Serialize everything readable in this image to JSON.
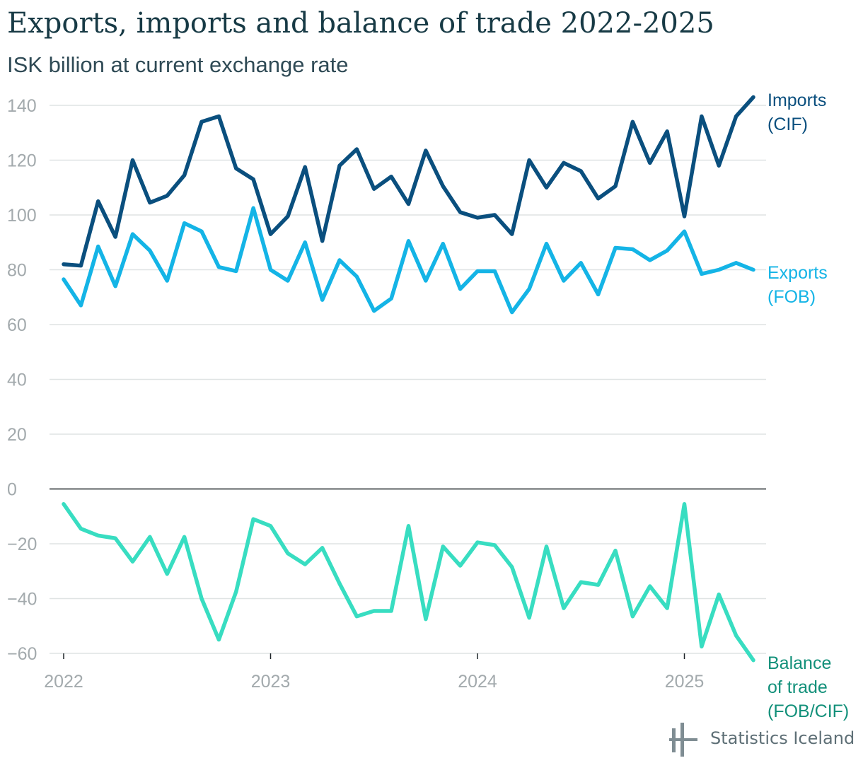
{
  "title": "Exports, imports and balance of trade 2022-2025",
  "subtitle": "ISK billion at current exchange rate",
  "logo_text": "Statistics Iceland",
  "colors": {
    "imports": "#0a4f7e",
    "exports": "#14b4e6",
    "balance": "#38ddc1",
    "balance_label": "#12907a"
  },
  "chart_data": {
    "type": "line",
    "x": [
      "2022-01",
      "2022-02",
      "2022-03",
      "2022-04",
      "2022-05",
      "2022-06",
      "2022-07",
      "2022-08",
      "2022-09",
      "2022-10",
      "2022-11",
      "2022-12",
      "2023-01",
      "2023-02",
      "2023-03",
      "2023-04",
      "2023-05",
      "2023-06",
      "2023-07",
      "2023-08",
      "2023-09",
      "2023-10",
      "2023-11",
      "2023-12",
      "2024-01",
      "2024-02",
      "2024-03",
      "2024-04",
      "2024-05",
      "2024-06",
      "2024-07",
      "2024-08",
      "2024-09",
      "2024-10",
      "2024-11",
      "2024-12",
      "2025-01",
      "2025-02",
      "2025-03",
      "2025-04",
      "2025-05"
    ],
    "xticks": [
      "2022",
      "2023",
      "2024",
      "2025"
    ],
    "ylim": [
      -60,
      140
    ],
    "yticks": [
      140,
      120,
      100,
      80,
      60,
      40,
      20,
      0,
      -20,
      -40,
      -60
    ],
    "ytick_labels": [
      "140",
      "120",
      "100",
      "80",
      "60",
      "40",
      "20",
      "0",
      "−20",
      "−40",
      "−60"
    ],
    "grid": true,
    "series": [
      {
        "name": "Imports (CIF)",
        "label_lines": [
          "Imports",
          "(CIF)"
        ],
        "values": [
          82,
          81.5,
          105,
          92,
          120,
          104.5,
          107,
          114.5,
          134,
          136,
          117,
          113,
          93,
          99.5,
          117.5,
          90.5,
          118,
          124,
          109.5,
          114,
          104,
          123.5,
          110.5,
          101,
          99,
          100,
          93,
          120,
          110,
          119,
          116,
          106,
          110.5,
          134,
          119,
          130.5,
          99.5,
          136,
          118,
          136,
          143
        ]
      },
      {
        "name": "Exports (FOB)",
        "label_lines": [
          "Exports",
          "(FOB)"
        ],
        "values": [
          76.5,
          67,
          88.5,
          74,
          93,
          87,
          76,
          97,
          94,
          81,
          79.5,
          102.5,
          80,
          76,
          90,
          69,
          83.5,
          77.5,
          65,
          69.5,
          90.5,
          76,
          89.5,
          73,
          79.5,
          79.5,
          64.5,
          73,
          89.5,
          76,
          82.5,
          71,
          88,
          87.5,
          83.5,
          87,
          94,
          78.5,
          80,
          82.5,
          80
        ]
      },
      {
        "name": "Balance of trade (FOB/CIF)",
        "label_lines": [
          "Balance",
          "of trade",
          "(FOB/CIF)"
        ],
        "values": [
          -5.5,
          -14.5,
          -17,
          -18,
          -26.5,
          -17.5,
          -31,
          -17.5,
          -40,
          -55,
          -37.5,
          -11,
          -13.5,
          -23.5,
          -27.5,
          -21.5,
          -34.5,
          -46.5,
          -44.5,
          -44.5,
          -13.5,
          -47.5,
          -21,
          -28,
          -19.5,
          -20.5,
          -28.5,
          -47,
          -21,
          -43.5,
          -34,
          -35,
          -22.5,
          -46.5,
          -35.5,
          -43.5,
          -5.5,
          -57.5,
          -38.5,
          -53.5,
          -62.5
        ]
      }
    ]
  }
}
